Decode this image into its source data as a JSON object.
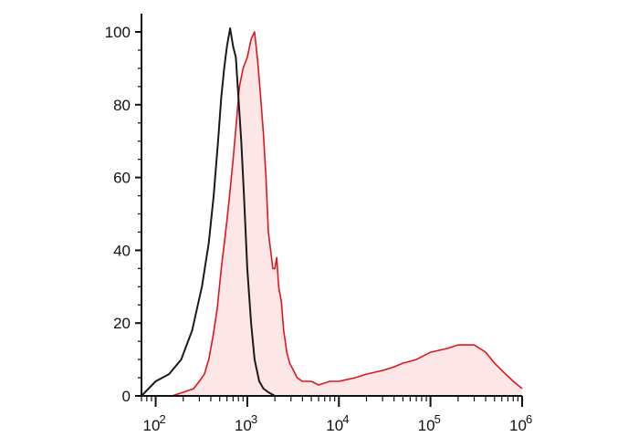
{
  "chart_data": {
    "type": "area",
    "title": "",
    "xlabel": "",
    "ylabel": "",
    "x_scale": "log",
    "xlim": [
      70,
      1000000
    ],
    "ylim": [
      0,
      100
    ],
    "y_ticks": [
      0,
      20,
      40,
      60,
      80,
      100
    ],
    "y_tick_labels": [
      "0",
      "20",
      "40",
      "60",
      "80",
      "100"
    ],
    "x_ticks": [
      {
        "value": 100,
        "base": "10",
        "exp": "2"
      },
      {
        "value": 1000,
        "base": "10",
        "exp": "3"
      },
      {
        "value": 10000,
        "base": "10",
        "exp": "4"
      },
      {
        "value": 100000,
        "base": "10",
        "exp": "5"
      },
      {
        "value": 1000000,
        "base": "10",
        "exp": "6"
      }
    ],
    "grid": false,
    "legend": "none",
    "series": [
      {
        "color": "#1a1a1a",
        "filled": false,
        "x": [
          70,
          100,
          140,
          190,
          250,
          320,
          380,
          430,
          480,
          520,
          560,
          600,
          650,
          700,
          750,
          800,
          860,
          920,
          1000,
          1100,
          1200,
          1350,
          1500,
          1700,
          2000,
          2400
        ],
        "y": [
          0,
          4,
          6,
          10,
          18,
          30,
          42,
          55,
          70,
          82,
          90,
          96,
          101,
          96,
          93,
          82,
          70,
          55,
          35,
          20,
          10,
          4,
          2,
          1,
          0,
          0
        ]
      },
      {
        "color": "#e0161c",
        "filled": true,
        "fill": "#fde6e6",
        "x": [
          70,
          100,
          150,
          200,
          260,
          300,
          340,
          380,
          420,
          470,
          520,
          580,
          640,
          700,
          760,
          820,
          900,
          1000,
          1100,
          1200,
          1300,
          1400,
          1500,
          1600,
          1700,
          1800,
          1900,
          2000,
          2100,
          2200,
          2350,
          2500,
          2700,
          2900,
          3200,
          3500,
          4000,
          5000,
          6000,
          8000,
          10000,
          15000,
          20000,
          30000,
          40000,
          50000,
          70000,
          100000,
          150000,
          200000,
          300000,
          400000,
          500000,
          600000,
          800000,
          1000000
        ],
        "y": [
          0,
          0,
          0,
          1,
          2,
          4,
          6,
          10,
          16,
          24,
          35,
          45,
          55,
          65,
          75,
          85,
          90,
          93,
          98,
          100,
          92,
          82,
          72,
          60,
          45,
          40,
          35,
          35,
          38,
          30,
          26,
          18,
          12,
          9,
          7,
          5,
          4,
          4,
          3,
          4,
          4,
          5,
          6,
          7,
          8,
          9,
          10,
          12,
          13,
          14,
          14,
          12,
          9,
          7,
          4,
          2
        ]
      }
    ]
  }
}
